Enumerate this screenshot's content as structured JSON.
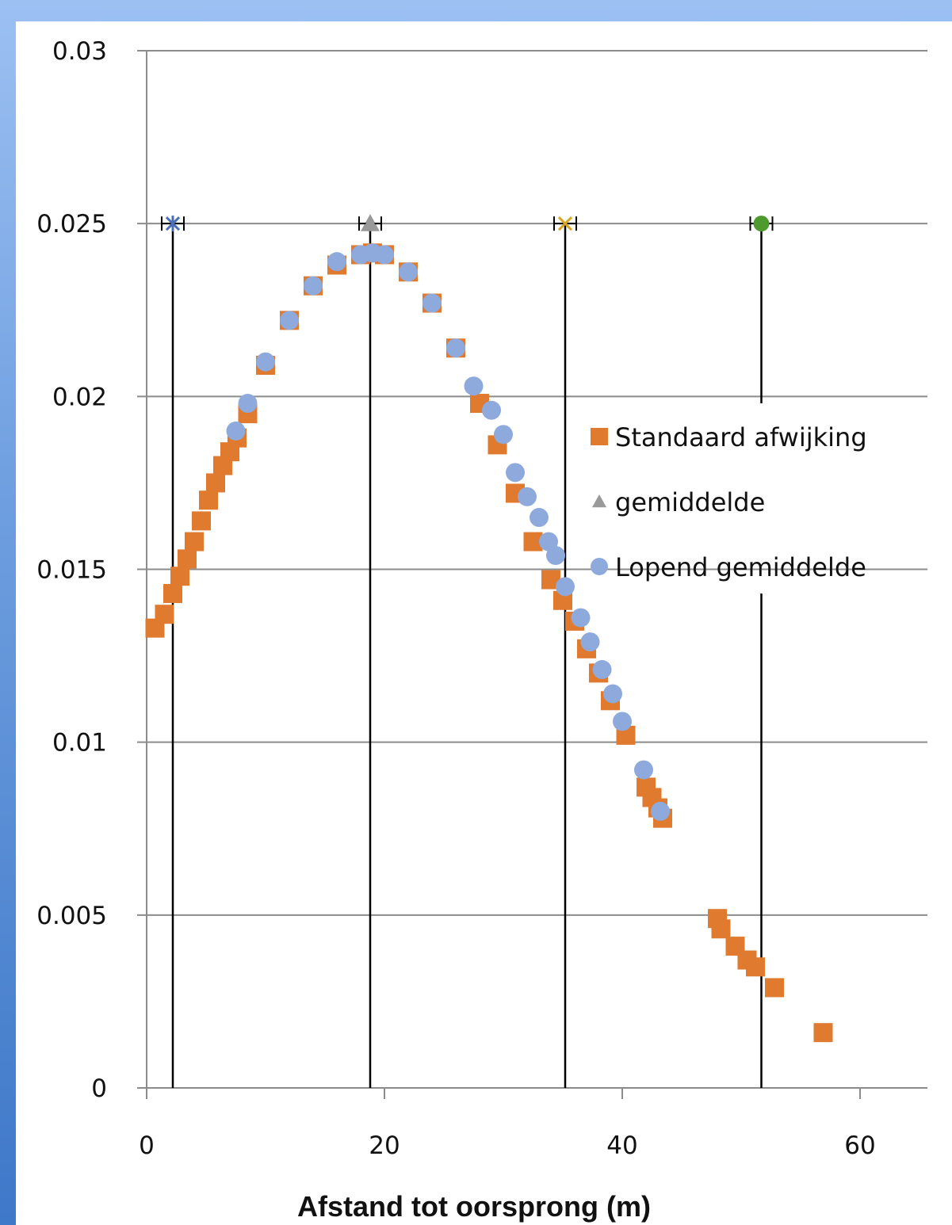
{
  "chart_data": {
    "type": "scatter",
    "title": "",
    "xlabel": "Afstand tot oorsprong (m)",
    "ylabel": "",
    "xlim": [
      0,
      65
    ],
    "ylim": [
      0,
      0.03
    ],
    "x_ticks": [
      "0",
      "20",
      "40",
      "60"
    ],
    "y_ticks": [
      "0",
      "0.005",
      "0.01",
      "0.015",
      "0.02",
      "0.025",
      "0.03"
    ],
    "grid": "horizontal",
    "legend_position": "right",
    "series": [
      {
        "name": "Standaard afwijking",
        "marker": "square",
        "color": "#e07a2e",
        "x": [
          0.7,
          1.5,
          2.2,
          2.8,
          3.4,
          4.0,
          4.6,
          5.2,
          5.8,
          6.4,
          7.0,
          7.6,
          8.5,
          10,
          12,
          14,
          16,
          18,
          19,
          20,
          22,
          24,
          26,
          28,
          29.5,
          31,
          32.5,
          34,
          35,
          36,
          37,
          38,
          39,
          40.3,
          42,
          42.5,
          43,
          43.4,
          48,
          48.3,
          49.5,
          50.5,
          51.2,
          52.8,
          56.9
        ],
        "y": [
          0.0133,
          0.0137,
          0.0143,
          0.0148,
          0.0153,
          0.0158,
          0.0164,
          0.017,
          0.0175,
          0.018,
          0.0184,
          0.0188,
          0.0195,
          0.0209,
          0.0222,
          0.0232,
          0.0238,
          0.0241,
          0.02415,
          0.0241,
          0.0236,
          0.0227,
          0.0214,
          0.0198,
          0.0186,
          0.0172,
          0.0158,
          0.0147,
          0.0141,
          0.0135,
          0.0127,
          0.012,
          0.0112,
          0.0102,
          0.0087,
          0.0084,
          0.0081,
          0.0078,
          0.0049,
          0.0046,
          0.0041,
          0.0037,
          0.0035,
          0.0029,
          0.0016
        ]
      },
      {
        "name": "gemiddelde",
        "marker": "triangle",
        "color": "#999999",
        "x": [
          18.8
        ],
        "y": [
          0.025
        ]
      },
      {
        "name": "Lopend gemiddelde",
        "marker": "circle",
        "color": "#8ea9db",
        "x": [
          7.5,
          8.5,
          10,
          12,
          14,
          16,
          18,
          19,
          20,
          22,
          24,
          26,
          27.5,
          29,
          30,
          31,
          32,
          33,
          33.8,
          34.4,
          35.2,
          36.5,
          37.3,
          38.3,
          39.2,
          40,
          41.8,
          43.2
        ],
        "y": [
          0.019,
          0.0198,
          0.021,
          0.0222,
          0.0232,
          0.0239,
          0.0241,
          0.02415,
          0.0241,
          0.0236,
          0.0227,
          0.0214,
          0.0203,
          0.0196,
          0.0189,
          0.0178,
          0.0171,
          0.0165,
          0.0158,
          0.0154,
          0.0145,
          0.0136,
          0.0129,
          0.0121,
          0.0114,
          0.0106,
          0.0092,
          0.008
        ]
      }
    ],
    "reference_points": [
      {
        "x": 2.2,
        "y": 0.025,
        "marker": "star",
        "color": "#4a6fb5"
      },
      {
        "x": 18.8,
        "y": 0.025,
        "marker": "triangle",
        "color": "#999999"
      },
      {
        "x": 35.2,
        "y": 0.025,
        "marker": "x",
        "color": "#d9a520"
      },
      {
        "x": 51.7,
        "y": 0.025,
        "marker": "circle",
        "color": "#4f9a2e"
      }
    ],
    "vertical_lines": [
      {
        "x": 2.2,
        "y_from": 0,
        "y_to": 0.025
      },
      {
        "x": 18.8,
        "y_from": 0,
        "y_to": 0.025
      },
      {
        "x": 35.2,
        "y_from": 0,
        "y_to": 0.025
      },
      {
        "x": 51.7,
        "y_from": 0.0198,
        "y_to": 0.025
      },
      {
        "x": 51.7,
        "y_from": 0,
        "y_to": 0.0143
      }
    ]
  }
}
